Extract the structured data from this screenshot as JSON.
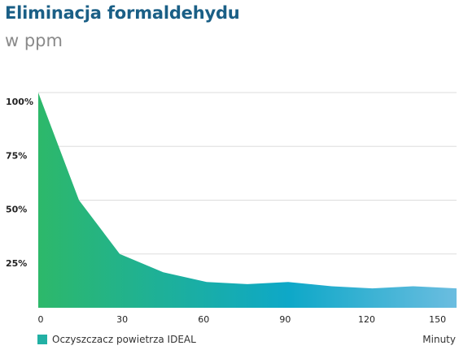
{
  "chart_data": {
    "type": "area",
    "title": "Eliminacja formaldehydu",
    "subtitle": "w ppm",
    "xlabel": "Minuty",
    "ylabel": "",
    "x_ticks": [
      0,
      30,
      60,
      90,
      120,
      150
    ],
    "y_ticks": [
      {
        "value": 25,
        "label": "25%"
      },
      {
        "value": 50,
        "label": "50%"
      },
      {
        "value": 75,
        "label": "75%"
      },
      {
        "value": 100,
        "label": "100%"
      }
    ],
    "xlim": [
      0,
      154
    ],
    "ylim": [
      0,
      100
    ],
    "grid": true,
    "legend_position": "bottom-left",
    "series": [
      {
        "name": "Oczyszczacz powietrza IDEAL",
        "x": [
          0,
          15,
          30,
          46,
          62,
          77,
          92,
          108,
          123,
          138,
          154
        ],
        "y": [
          100,
          50,
          25,
          16.5,
          12,
          11,
          12,
          10,
          9,
          10,
          9
        ]
      }
    ],
    "colors": {
      "gradient_start": "#2db86a",
      "gradient_mid": "#0ea8c8",
      "gradient_end": "#6bbde0",
      "legend_swatch": "#22b0a4",
      "grid": "#dddddd"
    }
  }
}
